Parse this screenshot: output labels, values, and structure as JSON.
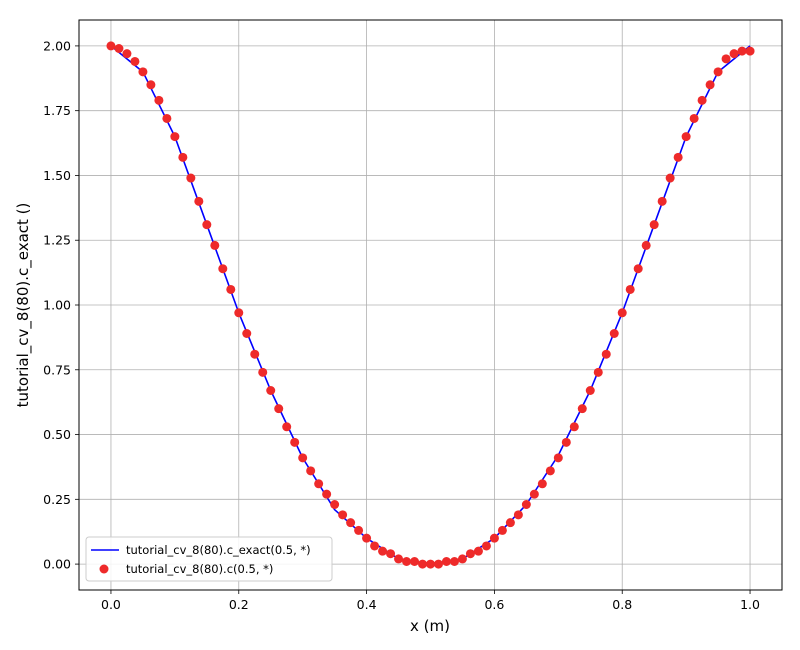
{
  "chart_data": {
    "type": "line",
    "xlabel": "x (m)",
    "ylabel": "tutorial_cv_8(80).c_exact ()",
    "xlim": [
      -0.05,
      1.05
    ],
    "ylim": [
      -0.1,
      2.1
    ],
    "xticks": [
      "0.0",
      "0.2",
      "0.4",
      "0.6",
      "0.8",
      "1.0"
    ],
    "xtick_values": [
      0.0,
      0.2,
      0.4,
      0.6,
      0.8,
      1.0
    ],
    "yticks": [
      "0.00",
      "0.25",
      "0.50",
      "0.75",
      "1.00",
      "1.25",
      "1.50",
      "1.75",
      "2.00"
    ],
    "ytick_values": [
      0.0,
      0.25,
      0.5,
      0.75,
      1.0,
      1.25,
      1.5,
      1.75,
      2.0
    ],
    "grid": true,
    "legend_position": "lower-left",
    "series": [
      {
        "name": "tutorial_cv_8(80).c_exact(0.5, *)",
        "kind": "line",
        "color": "#0000ff",
        "x": [
          0.0,
          0.05,
          0.1,
          0.15,
          0.2,
          0.25,
          0.3,
          0.35,
          0.4,
          0.45,
          0.5,
          0.55,
          0.6,
          0.65,
          0.7,
          0.75,
          0.8,
          0.85,
          0.9,
          0.95,
          1.0
        ],
        "y": [
          2.0,
          1.9,
          1.65,
          1.31,
          0.97,
          0.67,
          0.41,
          0.21,
          0.1,
          0.02,
          0.0,
          0.02,
          0.1,
          0.23,
          0.42,
          0.67,
          0.97,
          1.31,
          1.65,
          1.9,
          2.0
        ]
      },
      {
        "name": "tutorial_cv_8(80).c(0.5, *)",
        "kind": "scatter",
        "color": "#ee2a2a",
        "x": [
          0.0,
          0.0125,
          0.025,
          0.0375,
          0.05,
          0.0625,
          0.075,
          0.0875,
          0.1,
          0.1125,
          0.125,
          0.1375,
          0.15,
          0.1625,
          0.175,
          0.1875,
          0.2,
          0.2125,
          0.225,
          0.2375,
          0.25,
          0.2625,
          0.275,
          0.2875,
          0.3,
          0.3125,
          0.325,
          0.3375,
          0.35,
          0.3625,
          0.375,
          0.3875,
          0.4,
          0.4125,
          0.425,
          0.4375,
          0.45,
          0.4625,
          0.475,
          0.4875,
          0.5,
          0.5125,
          0.525,
          0.5375,
          0.55,
          0.5625,
          0.575,
          0.5875,
          0.6,
          0.6125,
          0.625,
          0.6375,
          0.65,
          0.6625,
          0.675,
          0.6875,
          0.7,
          0.7125,
          0.725,
          0.7375,
          0.75,
          0.7625,
          0.775,
          0.7875,
          0.8,
          0.8125,
          0.825,
          0.8375,
          0.85,
          0.8625,
          0.875,
          0.8875,
          0.9,
          0.9125,
          0.925,
          0.9375,
          0.95,
          0.9625,
          0.975,
          0.9875,
          1.0
        ],
        "y": [
          2.0,
          1.99,
          1.97,
          1.94,
          1.9,
          1.85,
          1.79,
          1.72,
          1.65,
          1.57,
          1.49,
          1.4,
          1.31,
          1.23,
          1.14,
          1.06,
          0.97,
          0.89,
          0.81,
          0.74,
          0.67,
          0.6,
          0.53,
          0.47,
          0.41,
          0.36,
          0.31,
          0.27,
          0.23,
          0.19,
          0.16,
          0.13,
          0.1,
          0.07,
          0.05,
          0.04,
          0.02,
          0.01,
          0.01,
          0.0,
          0.0,
          0.0,
          0.01,
          0.01,
          0.02,
          0.04,
          0.05,
          0.07,
          0.1,
          0.13,
          0.16,
          0.19,
          0.23,
          0.27,
          0.31,
          0.36,
          0.41,
          0.47,
          0.53,
          0.6,
          0.67,
          0.74,
          0.81,
          0.89,
          0.97,
          1.06,
          1.14,
          1.23,
          1.31,
          1.4,
          1.49,
          1.57,
          1.65,
          1.72,
          1.79,
          1.85,
          1.9,
          1.95,
          1.97,
          1.98,
          1.98
        ]
      }
    ]
  }
}
